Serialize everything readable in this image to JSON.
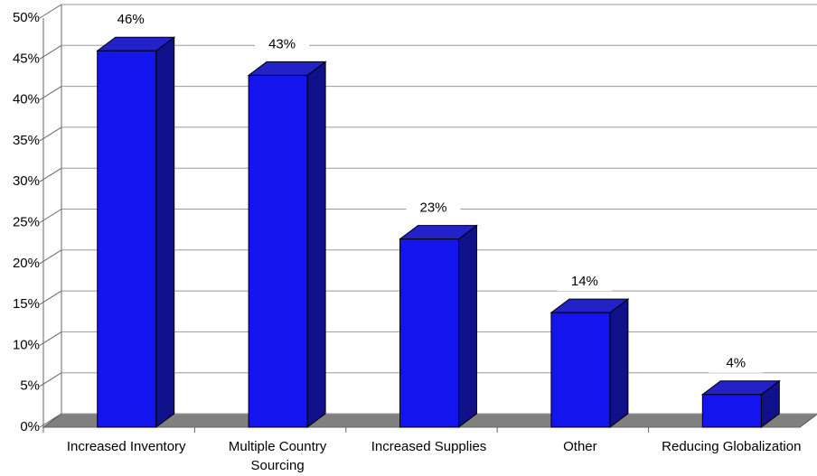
{
  "chart_data": {
    "type": "bar3d",
    "categories": [
      "Increased Inventory",
      "Multiple Country Sourcing",
      "Increased Supplies",
      "Other",
      "Reducing Globalization"
    ],
    "values": [
      46,
      43,
      23,
      14,
      4
    ],
    "value_labels": [
      "46%",
      "43%",
      "23%",
      "14%",
      "4%"
    ],
    "color": "#1414ee",
    "ylim": [
      0,
      50
    ],
    "yticks": [
      {
        "value": 0,
        "label": "0%"
      },
      {
        "value": 5,
        "label": "5%"
      },
      {
        "value": 10,
        "label": "10%"
      },
      {
        "value": 15,
        "label": "15%"
      },
      {
        "value": 20,
        "label": "20%"
      },
      {
        "value": 25,
        "label": "25%"
      },
      {
        "value": 30,
        "label": "30%"
      },
      {
        "value": 35,
        "label": "35%"
      },
      {
        "value": 40,
        "label": "40%"
      },
      {
        "value": 45,
        "label": "45%"
      },
      {
        "value": 50,
        "label": "50%"
      }
    ],
    "grid": true
  }
}
